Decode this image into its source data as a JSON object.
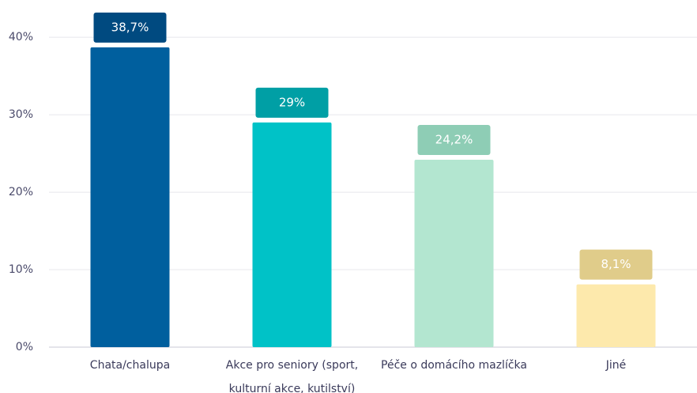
{
  "chart_data": {
    "type": "bar",
    "categories": [
      "Chata/chalupa",
      "Akce pro seniory (sport, kulturní akce, kutilství)",
      "Péče o domácího mazlíčka",
      "Jiné"
    ],
    "values": [
      38.7,
      29,
      24.2,
      8.1
    ],
    "value_labels": [
      "38,7%",
      "29%",
      "24,2%",
      "8,1%"
    ],
    "colors": [
      "#005f9e",
      "#00c2c7",
      "#b3e6d0",
      "#fde9ac"
    ],
    "label_colors": [
      "#004a80",
      "#009fa5",
      "#8ecdb5",
      "#e0cc8a"
    ],
    "ylim": [
      0,
      44
    ],
    "yticks": [
      {
        "value": 0,
        "label": "0%"
      },
      {
        "value": 10,
        "label": "10%"
      },
      {
        "value": 20,
        "label": "20%"
      },
      {
        "value": 30,
        "label": "30%"
      },
      {
        "value": 40,
        "label": "40%"
      }
    ],
    "grid": true
  }
}
